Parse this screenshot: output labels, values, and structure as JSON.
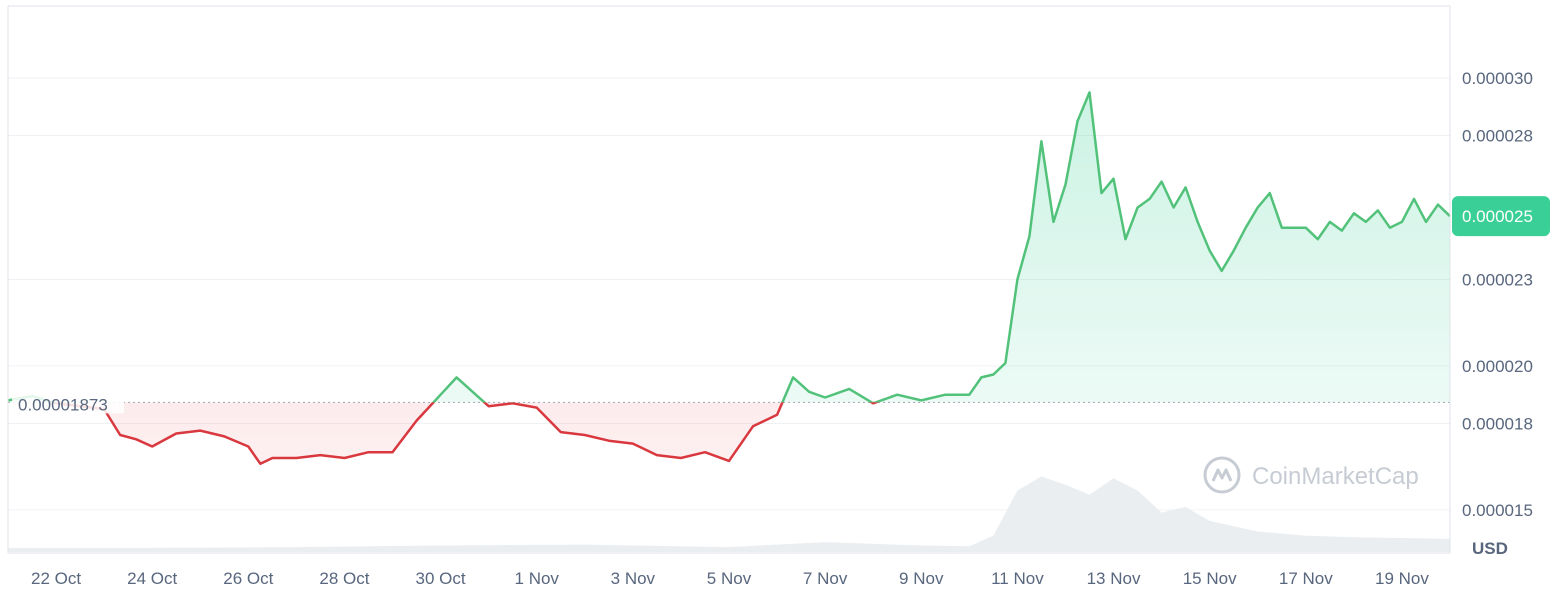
{
  "chart_data": {
    "type": "area",
    "ylim": [
      1.35e-05,
      3.25e-05
    ],
    "reference_value": 1.873e-05,
    "reference_label": "0.00001873",
    "current_label": "0.000025",
    "currency_label": "USD",
    "watermark": "CoinMarketCap",
    "yticks": [
      {
        "value": 1.5e-05,
        "label": "0.000015"
      },
      {
        "value": 1.8e-05,
        "label": "0.000018"
      },
      {
        "value": 2e-05,
        "label": "0.000020"
      },
      {
        "value": 2.3e-05,
        "label": "0.000023"
      },
      {
        "value": 2.8e-05,
        "label": "0.000028"
      },
      {
        "value": 3e-05,
        "label": "0.000030"
      }
    ],
    "xticks": [
      "22 Oct",
      "24 Oct",
      "26 Oct",
      "28 Oct",
      "30 Oct",
      "1 Nov",
      "3 Nov",
      "5 Nov",
      "7 Nov",
      "9 Nov",
      "11 Nov",
      "13 Nov",
      "15 Nov",
      "17 Nov",
      "19 Nov"
    ],
    "x_start": "2024-10-21",
    "x_end": "2024-11-20",
    "series": [
      {
        "x": [
          "2024-10-21",
          "2024-10-21T12:00",
          "2024-10-22",
          "2024-10-22T12:00",
          "2024-10-23",
          "2024-10-23T08:00",
          "2024-10-23T16:00",
          "2024-10-24",
          "2024-10-24T12:00",
          "2024-10-25",
          "2024-10-25T12:00",
          "2024-10-26",
          "2024-10-26T06:00",
          "2024-10-26T12:00",
          "2024-10-27",
          "2024-10-27T12:00",
          "2024-10-28",
          "2024-10-28T12:00",
          "2024-10-29",
          "2024-10-29T12:00",
          "2024-10-30",
          "2024-10-30T08:00",
          "2024-10-30T16:00",
          "2024-10-31",
          "2024-10-31T12:00",
          "2024-11-01",
          "2024-11-01T12:00",
          "2024-11-02",
          "2024-11-02T12:00",
          "2024-11-03",
          "2024-11-03T12:00",
          "2024-11-04",
          "2024-11-04T12:00",
          "2024-11-05",
          "2024-11-05T12:00",
          "2024-11-06",
          "2024-11-06T08:00",
          "2024-11-06T16:00",
          "2024-11-07",
          "2024-11-07T12:00",
          "2024-11-08",
          "2024-11-08T12:00",
          "2024-11-09",
          "2024-11-09T12:00",
          "2024-11-10",
          "2024-11-10T06:00",
          "2024-11-10T12:00",
          "2024-11-10T18:00",
          "2024-11-11",
          "2024-11-11T06:00",
          "2024-11-11T12:00",
          "2024-11-11T18:00",
          "2024-11-12",
          "2024-11-12T06:00",
          "2024-11-12T12:00",
          "2024-11-12T18:00",
          "2024-11-13",
          "2024-11-13T06:00",
          "2024-11-13T12:00",
          "2024-11-13T18:00",
          "2024-11-14",
          "2024-11-14T06:00",
          "2024-11-14T12:00",
          "2024-11-14T18:00",
          "2024-11-15",
          "2024-11-15T06:00",
          "2024-11-15T12:00",
          "2024-11-15T18:00",
          "2024-11-16",
          "2024-11-16T06:00",
          "2024-11-16T12:00",
          "2024-11-17",
          "2024-11-17T06:00",
          "2024-11-17T12:00",
          "2024-11-17T18:00",
          "2024-11-18",
          "2024-11-18T06:00",
          "2024-11-18T12:00",
          "2024-11-18T18:00",
          "2024-11-19",
          "2024-11-19T06:00",
          "2024-11-19T12:00",
          "2024-11-19T18:00",
          "2024-11-20"
        ],
        "values": [
          1.88e-05,
          1.895e-05,
          1.87e-05,
          1.86e-05,
          1.85e-05,
          1.76e-05,
          1.745e-05,
          1.72e-05,
          1.765e-05,
          1.775e-05,
          1.755e-05,
          1.72e-05,
          1.66e-05,
          1.68e-05,
          1.68e-05,
          1.69e-05,
          1.68e-05,
          1.7e-05,
          1.7e-05,
          1.81e-05,
          1.9e-05,
          1.96e-05,
          1.91e-05,
          1.86e-05,
          1.87e-05,
          1.855e-05,
          1.77e-05,
          1.76e-05,
          1.74e-05,
          1.73e-05,
          1.69e-05,
          1.68e-05,
          1.7e-05,
          1.67e-05,
          1.79e-05,
          1.83e-05,
          1.96e-05,
          1.91e-05,
          1.89e-05,
          1.92e-05,
          1.87e-05,
          1.9e-05,
          1.88e-05,
          1.9e-05,
          1.9e-05,
          1.96e-05,
          1.97e-05,
          2.01e-05,
          2.3e-05,
          2.45e-05,
          2.78e-05,
          2.5e-05,
          2.63e-05,
          2.85e-05,
          2.95e-05,
          2.6e-05,
          2.65e-05,
          2.44e-05,
          2.55e-05,
          2.58e-05,
          2.64e-05,
          2.55e-05,
          2.62e-05,
          2.5e-05,
          2.4e-05,
          2.33e-05,
          2.4e-05,
          2.48e-05,
          2.55e-05,
          2.6e-05,
          2.48e-05,
          2.48e-05,
          2.44e-05,
          2.5e-05,
          2.47e-05,
          2.53e-05,
          2.5e-05,
          2.54e-05,
          2.48e-05,
          2.5e-05,
          2.58e-05,
          2.5e-05,
          2.56e-05,
          2.52e-05
        ]
      }
    ],
    "volume": {
      "x": [
        "2024-10-21",
        "2024-10-24",
        "2024-10-27",
        "2024-10-30",
        "2024-11-02",
        "2024-11-05",
        "2024-11-07",
        "2024-11-09",
        "2024-11-10",
        "2024-11-10T12:00",
        "2024-11-11",
        "2024-11-11T12:00",
        "2024-11-12",
        "2024-11-12T12:00",
        "2024-11-13",
        "2024-11-13T12:00",
        "2024-11-14",
        "2024-11-14T12:00",
        "2024-11-15",
        "2024-11-16",
        "2024-11-17",
        "2024-11-18",
        "2024-11-19",
        "2024-11-20"
      ],
      "values": [
        0.05,
        0.05,
        0.06,
        0.08,
        0.09,
        0.06,
        0.12,
        0.08,
        0.07,
        0.2,
        0.75,
        0.92,
        0.82,
        0.7,
        0.9,
        0.75,
        0.48,
        0.55,
        0.38,
        0.25,
        0.2,
        0.18,
        0.17,
        0.16
      ]
    }
  }
}
